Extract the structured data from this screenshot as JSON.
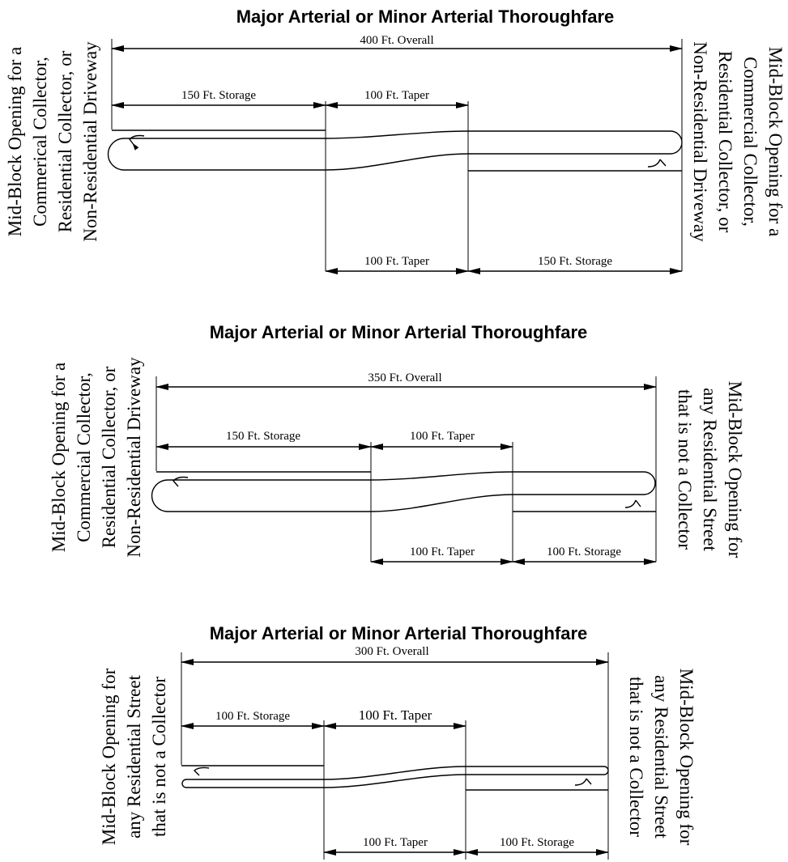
{
  "diagram_1": {
    "title": "Major Arterial or Minor Arterial Thoroughfare",
    "overall": "400 Ft. Overall",
    "top_storage": "150 Ft. Storage",
    "top_taper": "100 Ft. Taper",
    "bottom_taper": "100 Ft. Taper",
    "bottom_storage": "150 Ft. Storage",
    "left_lines": [
      "Mid-Block Opening for a",
      "Commerical Collector,",
      "Residential Collector, or",
      "Non-Residential Driveway"
    ],
    "right_lines": [
      "Mid-Block Opening for a",
      "Commercial Collector,",
      "Residential Collector, or",
      "Non-Residential Driveway"
    ]
  },
  "diagram_2": {
    "title": "Major Arterial or Minor Arterial Thoroughfare",
    "overall": "350 Ft. Overall",
    "top_storage": "150 Ft. Storage",
    "top_taper": "100 Ft. Taper",
    "bottom_taper": "100 Ft. Taper",
    "bottom_storage": "100 Ft. Storage",
    "left_lines": [
      "Mid-Block Opening for a",
      "Commercial Collector,",
      "Residential Collector, or",
      "Non-Residential Driveway"
    ],
    "right_lines": [
      "Mid-Block Opening for",
      "any Residential Street",
      "that is not a Collector"
    ]
  },
  "diagram_3": {
    "title": "Major Arterial or Minor Arterial Thoroughfare",
    "overall": "300 Ft. Overall",
    "top_storage": "100 Ft. Storage",
    "top_taper": "100 Ft. Taper",
    "bottom_taper": "100 Ft. Taper",
    "bottom_storage": "100 Ft. Storage",
    "left_lines": [
      "Mid-Block Opening for",
      "any Residential Street",
      "that is not a Collector"
    ],
    "right_lines": [
      "Mid-Block Opening for",
      "any Residential Street",
      "that is not a Collector"
    ]
  }
}
